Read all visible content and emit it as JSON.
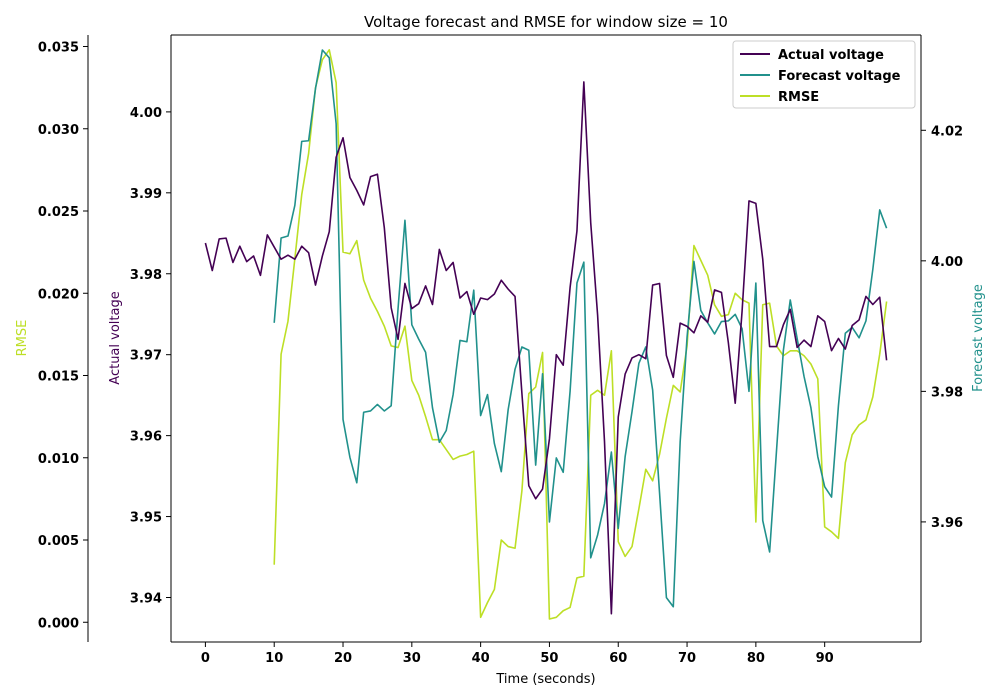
{
  "chart_data": {
    "type": "line",
    "title": "Voltage forecast and RMSE for window size = 10",
    "xlabel": "Time (seconds)",
    "x_ticks": [
      0,
      10,
      20,
      30,
      40,
      50,
      60,
      70,
      80,
      90
    ],
    "xlim": [
      -5,
      104
    ],
    "axes": {
      "actual": {
        "label": "Actual voltage",
        "color": "#440154",
        "ylim": [
          3.9345,
          4.0095
        ],
        "ticks": [
          "3.94",
          "3.95",
          "3.96",
          "3.97",
          "3.98",
          "3.99",
          "4.00"
        ]
      },
      "rmse": {
        "label": "RMSE",
        "color": "#bddf26",
        "ylim": [
          -0.0012,
          0.0357
        ],
        "ticks": [
          "0.000",
          "0.005",
          "0.010",
          "0.015",
          "0.020",
          "0.025",
          "0.030",
          "0.035"
        ]
      },
      "forecast": {
        "label": "Forecast voltage",
        "color": "#21918c",
        "ylim": [
          3.9416,
          4.0346
        ],
        "ticks": [
          "3.96",
          "3.98",
          "4.00",
          "4.02"
        ]
      }
    },
    "legend": {
      "position": "top-right",
      "entries": [
        "Actual voltage",
        "Forecast voltage",
        "RMSE"
      ]
    },
    "series": [
      {
        "name": "Actual voltage",
        "axis": "actual",
        "color": "#440154",
        "x": [
          0,
          1,
          2,
          3,
          4,
          5,
          6,
          7,
          8,
          9,
          10,
          11,
          12,
          13,
          14,
          15,
          16,
          17,
          18,
          19,
          20,
          21,
          22,
          23,
          24,
          25,
          26,
          27,
          28,
          29,
          30,
          31,
          32,
          33,
          34,
          35,
          36,
          37,
          38,
          39,
          40,
          41,
          42,
          43,
          44,
          45,
          46,
          47,
          48,
          49,
          50,
          51,
          52,
          53,
          54,
          55,
          56,
          57,
          58,
          59,
          60,
          61,
          62,
          63,
          64,
          65,
          66,
          67,
          68,
          69,
          70,
          71,
          72,
          73,
          74,
          75,
          76,
          77,
          78,
          79,
          80,
          81,
          82,
          83,
          84,
          85,
          86,
          87,
          88,
          89,
          90,
          91,
          92,
          93,
          94,
          95,
          96,
          97,
          98,
          99
        ],
        "y": [
          3.9838,
          3.9804,
          3.9843,
          3.9844,
          3.9814,
          3.9834,
          3.9815,
          3.9822,
          3.9798,
          3.9848,
          3.9833,
          3.9818,
          3.9823,
          3.9818,
          3.9834,
          3.9826,
          3.9786,
          3.9822,
          3.9852,
          3.9944,
          3.9968,
          3.9919,
          3.9903,
          3.9885,
          3.992,
          3.9923,
          3.9857,
          3.9758,
          3.9719,
          3.9788,
          3.9757,
          3.9763,
          3.9785,
          3.9762,
          3.983,
          3.9804,
          3.9814,
          3.977,
          3.9778,
          3.975,
          3.977,
          3.9768,
          3.9775,
          3.9792,
          3.9781,
          3.9772,
          3.9652,
          3.9538,
          3.9522,
          3.9534,
          3.9596,
          3.97,
          3.9687,
          3.9783,
          3.9853,
          4.0037,
          3.9863,
          3.9749,
          3.9593,
          3.938,
          3.9623,
          3.9676,
          3.9696,
          3.97,
          3.9695,
          3.9786,
          3.9788,
          3.9699,
          3.9672,
          3.9739,
          3.9735,
          3.9727,
          3.9748,
          3.974,
          3.978,
          3.9777,
          3.9715,
          3.964,
          3.9754,
          3.989,
          3.9887,
          3.9818,
          3.971,
          3.971,
          3.9737,
          3.9756,
          3.9709,
          3.9718,
          3.971,
          3.9748,
          3.9741,
          3.9705,
          3.972,
          3.9707,
          3.9736,
          3.9743,
          3.9772,
          3.9762,
          3.9771,
          3.9693
        ]
      },
      {
        "name": "Forecast voltage",
        "axis": "forecast",
        "color": "#21918c",
        "x": [
          10,
          11,
          12,
          13,
          14,
          15,
          16,
          17,
          18,
          19,
          20,
          21,
          22,
          23,
          24,
          25,
          26,
          27,
          28,
          29,
          30,
          31,
          32,
          33,
          34,
          35,
          36,
          37,
          38,
          39,
          40,
          41,
          42,
          43,
          44,
          45,
          46,
          47,
          48,
          49,
          50,
          51,
          52,
          53,
          54,
          55,
          56,
          57,
          58,
          59,
          60,
          61,
          62,
          63,
          64,
          65,
          66,
          67,
          68,
          69,
          70,
          71,
          72,
          73,
          74,
          75,
          76,
          77,
          78,
          79,
          80,
          81,
          82,
          83,
          84,
          85,
          86,
          87,
          88,
          89,
          90,
          91,
          92,
          93,
          94,
          95,
          96,
          97,
          98,
          99
        ],
        "y": [
          3.9905,
          4.0035,
          4.0038,
          4.0085,
          4.0183,
          4.0184,
          4.0264,
          4.0323,
          4.0311,
          4.021,
          3.9757,
          3.9699,
          3.966,
          3.9768,
          3.977,
          3.978,
          3.977,
          3.9778,
          3.9927,
          4.0062,
          3.9902,
          3.988,
          3.986,
          3.9775,
          3.9722,
          3.974,
          3.9795,
          3.9878,
          3.9876,
          3.9955,
          3.9763,
          3.9795,
          3.972,
          3.9677,
          3.9772,
          3.9834,
          3.9868,
          3.9863,
          3.9687,
          3.9827,
          3.96,
          3.9698,
          3.9676,
          3.98,
          3.9966,
          3.9998,
          3.9545,
          3.958,
          3.9628,
          3.9707,
          3.959,
          3.97,
          3.9769,
          3.9843,
          3.9868,
          3.9802,
          3.9645,
          3.9484,
          3.947,
          3.9723,
          3.9883,
          3.9999,
          3.9924,
          3.9905,
          3.9888,
          3.9907,
          3.9908,
          3.9918,
          3.9896,
          3.98,
          3.9966,
          3.9602,
          3.9554,
          3.9709,
          3.9863,
          3.994,
          3.9881,
          3.9823,
          3.9775,
          3.97,
          3.9654,
          3.9638,
          3.9778,
          3.9889,
          3.9898,
          3.9882,
          3.9908,
          3.9987,
          4.0078,
          4.005
        ]
      },
      {
        "name": "RMSE",
        "axis": "rmse",
        "color": "#bddf26",
        "x": [
          10,
          11,
          12,
          13,
          14,
          15,
          16,
          17,
          18,
          19,
          20,
          21,
          22,
          23,
          24,
          25,
          26,
          27,
          28,
          29,
          30,
          31,
          32,
          33,
          34,
          35,
          36,
          37,
          38,
          39,
          40,
          41,
          42,
          43,
          44,
          45,
          46,
          47,
          48,
          49,
          50,
          51,
          52,
          53,
          54,
          55,
          56,
          57,
          58,
          59,
          60,
          61,
          62,
          63,
          64,
          65,
          66,
          67,
          68,
          69,
          70,
          71,
          72,
          73,
          74,
          75,
          76,
          77,
          78,
          79,
          80,
          81,
          82,
          83,
          84,
          85,
          86,
          87,
          88,
          89,
          90,
          91,
          92,
          93,
          94,
          95,
          96,
          97,
          98,
          99
        ],
        "y": [
          0.0035,
          0.0163,
          0.0183,
          0.0221,
          0.026,
          0.0285,
          0.0325,
          0.0342,
          0.0348,
          0.0328,
          0.0225,
          0.0224,
          0.0232,
          0.0208,
          0.0197,
          0.0189,
          0.018,
          0.0168,
          0.0167,
          0.018,
          0.0147,
          0.0138,
          0.0125,
          0.0111,
          0.0111,
          0.0105,
          0.0099,
          0.0101,
          0.0102,
          0.0104,
          0.0003,
          0.0012,
          0.002,
          0.005,
          0.0046,
          0.0045,
          0.008,
          0.0139,
          0.0143,
          0.0164,
          0.0002,
          0.0003,
          0.0007,
          0.0009,
          0.0027,
          0.0028,
          0.0138,
          0.0141,
          0.0138,
          0.0165,
          0.0049,
          0.004,
          0.0046,
          0.0069,
          0.0093,
          0.0086,
          0.0102,
          0.0124,
          0.0144,
          0.014,
          0.0168,
          0.0229,
          0.022,
          0.0211,
          0.0193,
          0.0186,
          0.0187,
          0.02,
          0.0196,
          0.0194,
          0.0061,
          0.0193,
          0.0194,
          0.0168,
          0.0162,
          0.0165,
          0.0165,
          0.0162,
          0.0157,
          0.0148,
          0.0058,
          0.0055,
          0.0051,
          0.0097,
          0.0114,
          0.012,
          0.0123,
          0.0137,
          0.0163,
          0.0195
        ]
      }
    ]
  }
}
